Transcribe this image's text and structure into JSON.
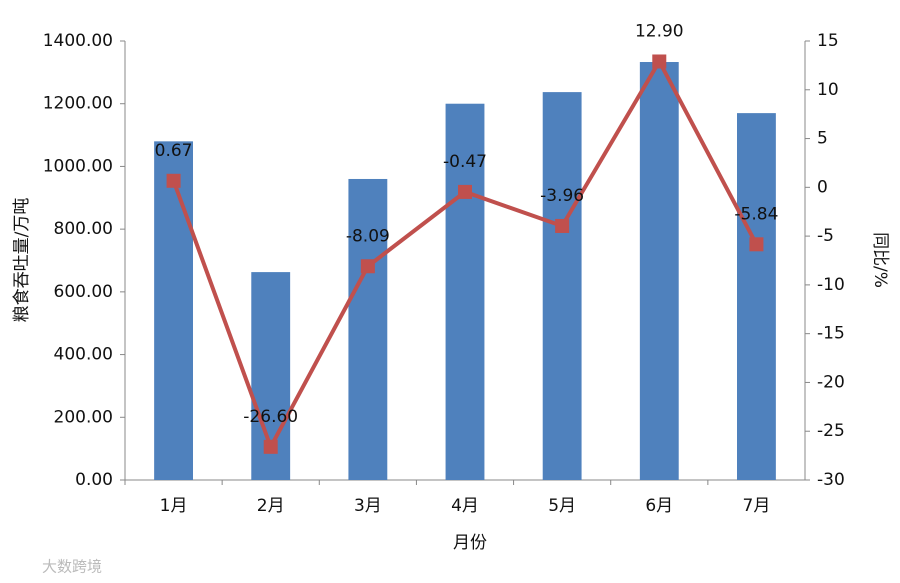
{
  "chart_data": {
    "type": "bar-line",
    "categories": [
      "1月",
      "2月",
      "3月",
      "4月",
      "5月",
      "6月",
      "7月"
    ],
    "x_label": "月份",
    "y_label": "粮食吞吐量/万吨",
    "y2_label": "同比/%",
    "series": [
      {
        "name": "粮食吞吐量",
        "type": "bar",
        "color": "#4f81bd",
        "values": [
          1080,
          663,
          960,
          1200,
          1237,
          1333,
          1170
        ]
      },
      {
        "name": "同比",
        "type": "line",
        "axis": "y2",
        "color": "#c0504d",
        "values": [
          0.67,
          -26.6,
          -8.09,
          -0.47,
          -3.96,
          12.9,
          -5.84
        ],
        "value_labels": [
          "0.67",
          "-26.60",
          "-8.09",
          "-0.47",
          "-3.96",
          "12.90",
          "-5.84"
        ]
      }
    ],
    "ylim": [
      0,
      1400
    ],
    "yticks": [
      {
        "value": 0,
        "label": "0.00"
      },
      {
        "value": 200,
        "label": "200.00"
      },
      {
        "value": 400,
        "label": "400.00"
      },
      {
        "value": 600,
        "label": "600.00"
      },
      {
        "value": 800,
        "label": "800.00"
      },
      {
        "value": 1000,
        "label": "1000.00"
      },
      {
        "value": 1200,
        "label": "1200.00"
      },
      {
        "value": 1400,
        "label": "1400.00"
      }
    ],
    "y2lim": [
      -30,
      15
    ],
    "y2ticks": [
      -30,
      -25,
      -20,
      -15,
      -10,
      -5,
      0,
      5,
      10,
      15
    ],
    "watermark": "大数跨境"
  }
}
